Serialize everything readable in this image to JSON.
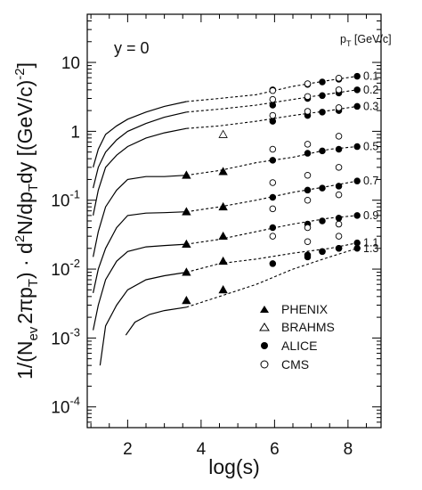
{
  "chart_data": {
    "type": "scatter",
    "title": "",
    "xlabel": "log(s)",
    "ylabel": "1/(N_ev 2πp_T) · d²N/dp_T dy [(GeV/c)⁻²]",
    "ylabel_parts": {
      "a": "1/(N",
      "a_sub": "ev",
      "b": "2πp",
      "b_sub": "T",
      "c": ") · d",
      "c_sup": "2",
      "d": "N/dp",
      "d_sub": "T",
      "e": "dy [(GeV/c)",
      "e_sup": "-2",
      "f": "]"
    },
    "xlim": [
      0.9,
      8.9
    ],
    "ylim": [
      5e-05,
      50
    ],
    "yscale": "log",
    "x_ticks": [
      "2",
      "4",
      "6",
      "8"
    ],
    "x_tick_values": [
      2,
      4,
      6,
      8
    ],
    "y_ticks": [
      {
        "value": 10,
        "base": "10",
        "exp": ""
      },
      {
        "value": 1,
        "base": "1",
        "exp": ""
      },
      {
        "value": 0.1,
        "base": "10",
        "exp": "-1"
      },
      {
        "value": 0.01,
        "base": "10",
        "exp": "-2"
      },
      {
        "value": 0.001,
        "base": "10",
        "exp": "-3"
      },
      {
        "value": 0.0001,
        "base": "10",
        "exp": "-4"
      }
    ],
    "annotation": "y = 0",
    "pt_header": {
      "main": "p",
      "sub": "T",
      "rest": " [GeV/c]"
    },
    "legend": [
      "PHENIX",
      "BRAHMS",
      "ALICE",
      "CMS"
    ],
    "legend_position": "bottom-right",
    "series": [
      {
        "pt": "0.1",
        "curve_solid": [
          [
            1.06,
            0.3
          ],
          [
            1.2,
            0.55
          ],
          [
            1.4,
            0.9
          ],
          [
            1.7,
            1.2
          ],
          [
            2.0,
            1.5
          ],
          [
            2.5,
            1.9
          ],
          [
            3.0,
            2.3
          ],
          [
            3.6,
            2.7
          ]
        ],
        "curve_dash": [
          [
            3.6,
            2.7
          ],
          [
            4.5,
            3.0
          ],
          [
            5.5,
            3.4
          ],
          [
            6.5,
            4.5
          ],
          [
            7.5,
            5.5
          ],
          [
            8.25,
            6.3
          ]
        ],
        "alice": [
          [
            5.95,
            4.0
          ],
          [
            6.9,
            4.8
          ],
          [
            7.3,
            5.2
          ],
          [
            7.75,
            5.7
          ],
          [
            8.25,
            6.3
          ]
        ],
        "cms": [
          [
            5.95,
            3.9
          ],
          [
            6.9,
            4.9
          ],
          [
            7.75,
            5.9
          ]
        ]
      },
      {
        "pt": "0.2",
        "curve_solid": [
          [
            1.06,
            0.15
          ],
          [
            1.2,
            0.3
          ],
          [
            1.4,
            0.5
          ],
          [
            1.7,
            0.75
          ],
          [
            2.0,
            1.0
          ],
          [
            2.5,
            1.3
          ],
          [
            3.0,
            1.6
          ],
          [
            3.6,
            1.9
          ]
        ],
        "curve_dash": [
          [
            3.6,
            1.9
          ],
          [
            4.5,
            2.1
          ],
          [
            5.5,
            2.4
          ],
          [
            6.5,
            2.9
          ],
          [
            7.5,
            3.5
          ],
          [
            8.25,
            4.0
          ]
        ],
        "alice": [
          [
            5.95,
            2.4
          ],
          [
            6.9,
            3.0
          ],
          [
            7.3,
            3.3
          ],
          [
            7.75,
            3.6
          ],
          [
            8.25,
            4.0
          ]
        ],
        "cms": [
          [
            5.95,
            2.9
          ],
          [
            6.9,
            3.2
          ],
          [
            7.75,
            4.0
          ]
        ]
      },
      {
        "pt": "0.3",
        "curve_solid": [
          [
            1.06,
            0.06
          ],
          [
            1.2,
            0.14
          ],
          [
            1.4,
            0.3
          ],
          [
            1.7,
            0.45
          ],
          [
            2.0,
            0.6
          ],
          [
            2.5,
            0.8
          ],
          [
            3.0,
            0.95
          ],
          [
            3.6,
            1.1
          ]
        ],
        "curve_dash": [
          [
            3.6,
            1.1
          ],
          [
            4.5,
            1.2
          ],
          [
            5.5,
            1.4
          ],
          [
            6.5,
            1.7
          ],
          [
            7.5,
            2.0
          ],
          [
            8.25,
            2.3
          ]
        ],
        "alice": [
          [
            5.95,
            1.4
          ],
          [
            6.9,
            1.7
          ],
          [
            7.3,
            1.9
          ],
          [
            7.75,
            2.0
          ],
          [
            8.25,
            2.3
          ]
        ],
        "cms": [
          [
            5.95,
            1.7
          ],
          [
            6.9,
            1.95
          ],
          [
            7.75,
            2.2
          ]
        ],
        "brahms": [
          [
            4.6,
            0.9
          ]
        ]
      },
      {
        "pt": "0.5",
        "curve_solid": [
          [
            1.06,
            0.015
          ],
          [
            1.2,
            0.035
          ],
          [
            1.4,
            0.08
          ],
          [
            1.7,
            0.14
          ],
          [
            2.0,
            0.2
          ],
          [
            2.5,
            0.22
          ],
          [
            3.0,
            0.22
          ],
          [
            3.6,
            0.23
          ]
        ],
        "curve_dash": [
          [
            3.6,
            0.23
          ],
          [
            4.5,
            0.27
          ],
          [
            5.5,
            0.35
          ],
          [
            6.5,
            0.42
          ],
          [
            7.5,
            0.55
          ],
          [
            8.25,
            0.6
          ]
        ],
        "phenix": [
          [
            3.6,
            0.23
          ],
          [
            4.6,
            0.26
          ]
        ],
        "alice": [
          [
            5.95,
            0.38
          ],
          [
            6.9,
            0.48
          ],
          [
            7.3,
            0.52
          ],
          [
            7.75,
            0.55
          ],
          [
            8.25,
            0.6
          ]
        ],
        "cms": [
          [
            5.95,
            0.55
          ],
          [
            6.9,
            0.65
          ],
          [
            7.75,
            0.85
          ]
        ]
      },
      {
        "pt": "0.7",
        "curve_solid": [
          [
            1.06,
            0.0045
          ],
          [
            1.2,
            0.01
          ],
          [
            1.4,
            0.02
          ],
          [
            1.7,
            0.04
          ],
          [
            2.0,
            0.06
          ],
          [
            2.5,
            0.065
          ],
          [
            3.0,
            0.066
          ],
          [
            3.6,
            0.068
          ]
        ],
        "curve_dash": [
          [
            3.6,
            0.068
          ],
          [
            4.5,
            0.08
          ],
          [
            5.5,
            0.1
          ],
          [
            6.5,
            0.13
          ],
          [
            7.5,
            0.16
          ],
          [
            8.25,
            0.19
          ]
        ],
        "phenix": [
          [
            3.6,
            0.068
          ],
          [
            4.6,
            0.08
          ]
        ],
        "alice": [
          [
            5.95,
            0.11
          ],
          [
            6.9,
            0.14
          ],
          [
            7.3,
            0.15
          ],
          [
            7.75,
            0.16
          ],
          [
            8.25,
            0.19
          ]
        ],
        "cms": [
          [
            5.95,
            0.18
          ],
          [
            6.9,
            0.23
          ],
          [
            7.75,
            0.3
          ]
        ]
      },
      {
        "pt": "0.9",
        "curve_solid": [
          [
            1.06,
            0.0013
          ],
          [
            1.2,
            0.003
          ],
          [
            1.4,
            0.007
          ],
          [
            1.7,
            0.013
          ],
          [
            2.0,
            0.018
          ],
          [
            2.5,
            0.021
          ],
          [
            3.0,
            0.022
          ],
          [
            3.6,
            0.023
          ]
        ],
        "curve_dash": [
          [
            3.6,
            0.023
          ],
          [
            4.5,
            0.027
          ],
          [
            5.5,
            0.035
          ],
          [
            6.5,
            0.045
          ],
          [
            7.5,
            0.055
          ],
          [
            8.25,
            0.06
          ]
        ],
        "phenix": [
          [
            3.6,
            0.023
          ],
          [
            4.6,
            0.03
          ]
        ],
        "alice": [
          [
            5.95,
            0.04
          ],
          [
            6.9,
            0.045
          ],
          [
            7.3,
            0.05
          ],
          [
            7.75,
            0.055
          ],
          [
            8.25,
            0.06
          ]
        ],
        "cms": [
          [
            5.95,
            0.075
          ],
          [
            6.9,
            0.1
          ],
          [
            7.75,
            0.12
          ]
        ]
      },
      {
        "pt": "1.1",
        "curve_solid": [
          [
            1.25,
            0.0004
          ],
          [
            1.4,
            0.0015
          ],
          [
            1.7,
            0.003
          ],
          [
            2.0,
            0.005
          ],
          [
            2.5,
            0.007
          ],
          [
            3.0,
            0.008
          ],
          [
            3.6,
            0.009
          ]
        ],
        "curve_dash": [
          [
            3.6,
            0.009
          ],
          [
            4.5,
            0.012
          ],
          [
            5.5,
            0.014
          ],
          [
            6.5,
            0.017
          ],
          [
            7.5,
            0.02
          ],
          [
            8.25,
            0.024
          ]
        ],
        "phenix": [
          [
            3.6,
            0.009
          ],
          [
            4.6,
            0.013
          ]
        ],
        "alice": [
          [
            5.95,
            0.012
          ],
          [
            6.9,
            0.015
          ],
          [
            7.3,
            0.018
          ],
          [
            7.75,
            0.02
          ],
          [
            8.25,
            0.024
          ]
        ],
        "cms": [
          [
            5.95,
            0.03
          ],
          [
            6.9,
            0.04
          ],
          [
            7.75,
            0.045
          ]
        ]
      },
      {
        "pt": "1.3",
        "curve_solid": [
          [
            1.95,
            0.0011
          ],
          [
            2.2,
            0.0017
          ],
          [
            2.6,
            0.0022
          ],
          [
            3.0,
            0.0025
          ],
          [
            3.6,
            0.0028
          ]
        ],
        "curve_dash": [
          [
            3.6,
            0.0028
          ],
          [
            4.5,
            0.004
          ],
          [
            5.5,
            0.006
          ],
          [
            6.5,
            0.01
          ],
          [
            7.5,
            0.015
          ],
          [
            8.25,
            0.02
          ]
        ],
        "phenix": [
          [
            3.6,
            0.0035
          ],
          [
            4.6,
            0.005
          ]
        ],
        "alice": [
          [
            6.9,
            0.016
          ],
          [
            7.3,
            0.018
          ],
          [
            7.75,
            0.02
          ],
          [
            8.25,
            0.02
          ]
        ],
        "cms": [
          [
            6.9,
            0.025
          ],
          [
            7.75,
            0.03
          ]
        ]
      }
    ],
    "grid": false
  }
}
